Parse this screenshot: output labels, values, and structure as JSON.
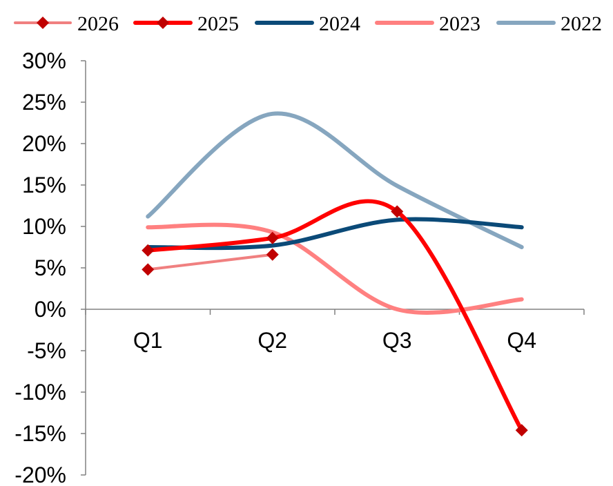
{
  "chart_data": {
    "type": "line",
    "categories": [
      "Q1",
      "Q2",
      "Q3",
      "Q4"
    ],
    "ylim": [
      -20,
      30
    ],
    "y_tick_step": 5,
    "y_tick_labels": [
      "30%",
      "25%",
      "20%",
      "15%",
      "10%",
      "5%",
      "0%",
      "-5%",
      "-10%",
      "-15%",
      "-20%"
    ],
    "legend_position": "top",
    "grid": false,
    "smooth": true,
    "series": [
      {
        "name": "2026",
        "color": "#F08080",
        "marker": "diamond",
        "marker_color": "#C00000",
        "values": [
          4.8,
          6.6,
          null,
          null
        ]
      },
      {
        "name": "2025",
        "color": "#FF0000",
        "marker": "diamond",
        "marker_color": "#C00000",
        "values": [
          7.1,
          8.6,
          11.8,
          -14.6
        ]
      },
      {
        "name": "2024",
        "color": "#0B4A78",
        "marker": "none",
        "values": [
          7.5,
          7.7,
          10.8,
          9.9
        ]
      },
      {
        "name": "2023",
        "color": "#FF8080",
        "marker": "none",
        "values": [
          9.9,
          9.3,
          0.0,
          1.2
        ]
      },
      {
        "name": "2022",
        "color": "#86A6BF",
        "marker": "none",
        "values": [
          11.2,
          23.6,
          14.9,
          7.5
        ]
      }
    ]
  }
}
